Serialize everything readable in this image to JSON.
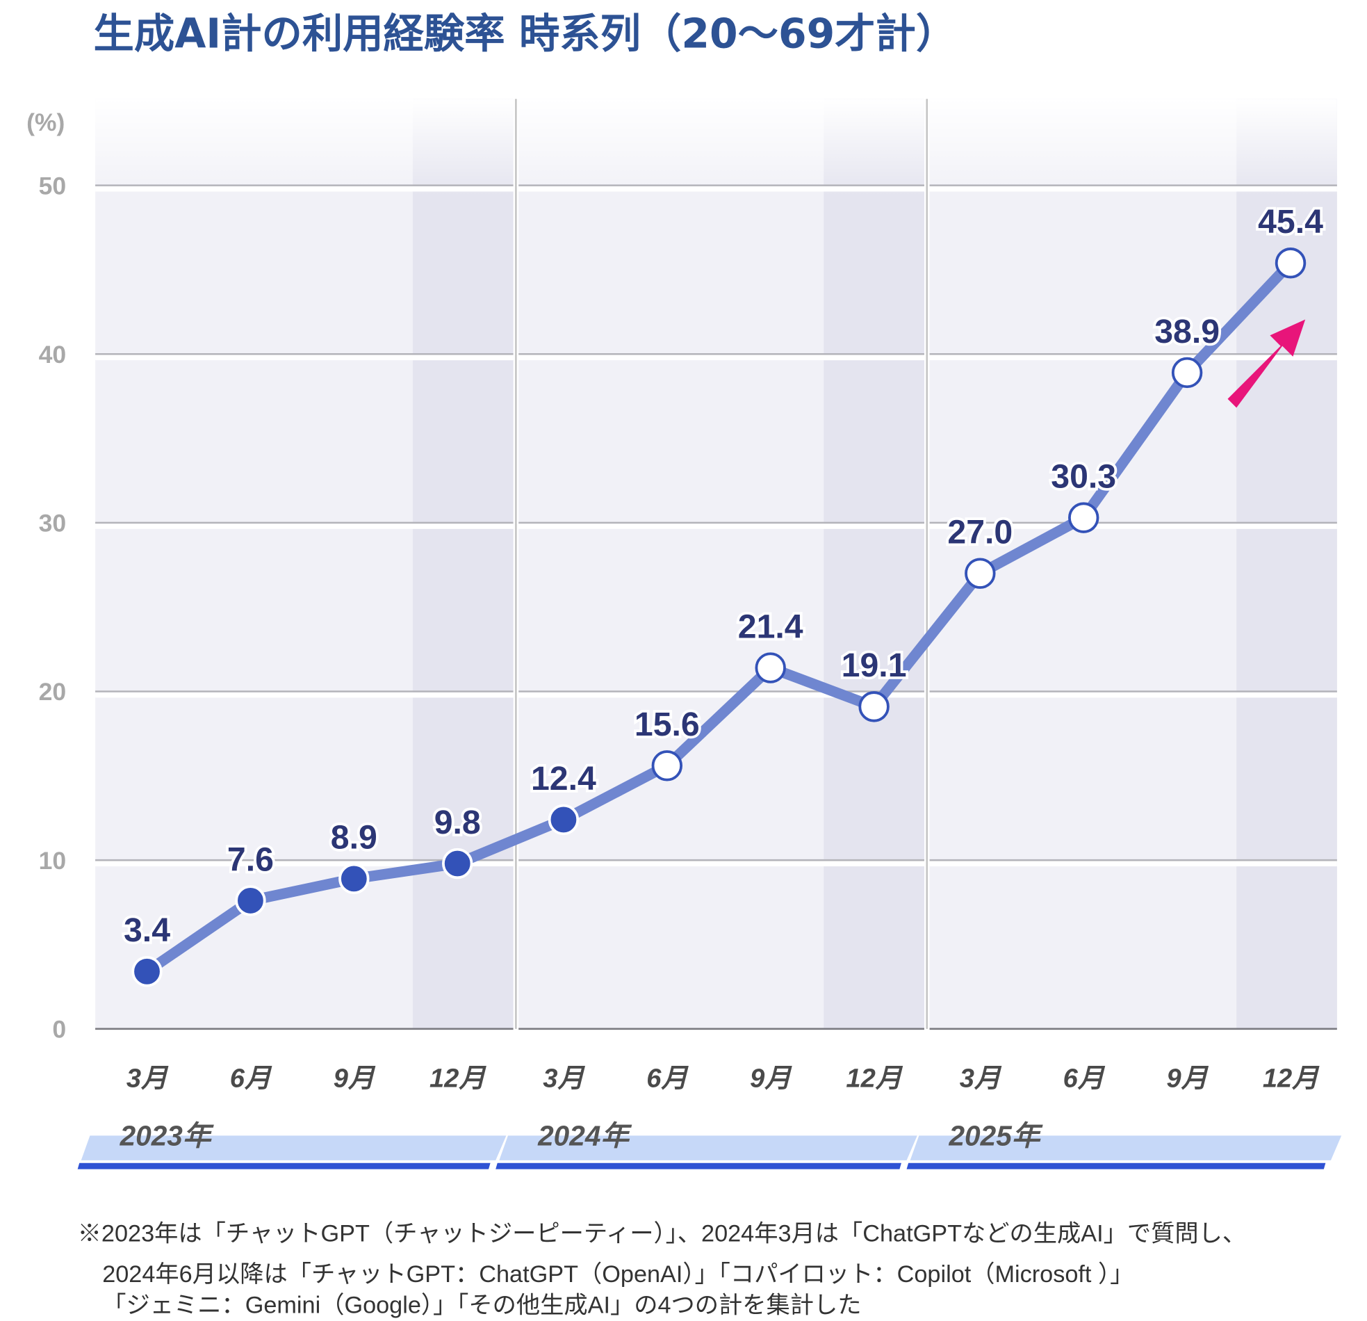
{
  "chart_data": {
    "type": "line",
    "title": "生成AI計の利用経験率 時系列（20〜69才計）",
    "ylabel": "(%)",
    "ylim": [
      0,
      50
    ],
    "yticks": [
      "0",
      "10",
      "20",
      "30",
      "40",
      "50"
    ],
    "grid": true,
    "categories": [
      "3月",
      "6月",
      "9月",
      "12月",
      "3月",
      "6月",
      "9月",
      "12月",
      "3月",
      "6月",
      "9月",
      "12月"
    ],
    "years": [
      "2023年",
      "2024年",
      "2025年"
    ],
    "values": [
      3.4,
      7.6,
      8.9,
      9.8,
      12.4,
      15.6,
      21.4,
      19.1,
      27.0,
      30.3,
      38.9,
      45.4
    ],
    "labels": [
      "3.4",
      "7.6",
      "8.9",
      "9.8",
      "12.4",
      "15.6",
      "21.4",
      "19.1",
      "27.0",
      "30.3",
      "38.9",
      "45.4"
    ],
    "filled_points": 5,
    "colors": {
      "line": "#6f86d0",
      "marker_fill": "#3352b8",
      "label": "#2c3675",
      "arrow": "#e8157a",
      "title": "#2d5294",
      "year_band": "#c6d8f8",
      "year_bar": "#2f52d4"
    }
  },
  "footnote": [
    "※2023年は「チャットGPT（チャットジーピーティー）」、2024年3月は「ChatGPTなどの生成AI」で質問し、",
    "2024年6月以降は「チャットGPT：ChatGPT（OpenAI）」「コパイロット：Copilot（Microsoft ）」",
    "「ジェミニ：Gemini（Google）」「その他生成AI」の4つの計を集計した"
  ]
}
